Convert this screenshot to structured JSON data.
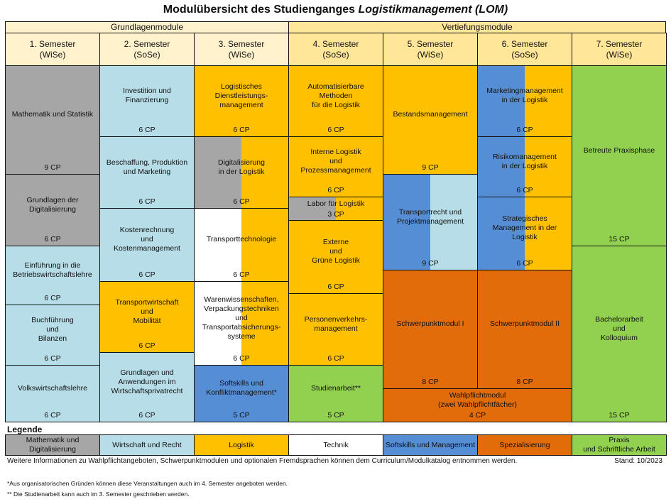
{
  "title": {
    "prefix": "Modulübersicht des Studienganges ",
    "program": "Logistikmanagement (LOM)"
  },
  "groups": [
    {
      "label": "Grundlagenmodule"
    },
    {
      "label": "Vertiefungsmodule"
    }
  ],
  "semesters": [
    {
      "label": "1. Semester",
      "term": "(WiSe)"
    },
    {
      "label": "2. Semester",
      "term": "(SoSe)"
    },
    {
      "label": "3. Semester",
      "term": "(WiSe)"
    },
    {
      "label": "4. Semester",
      "term": "(SoSe)"
    },
    {
      "label": "5. Semester",
      "term": "(WiSe)"
    },
    {
      "label": "6. Semester",
      "term": "(SoSe)"
    },
    {
      "label": "7. Semester",
      "term": "(WiSe)"
    }
  ],
  "colors": {
    "mathe": "#a6a6a6",
    "wirtschaft": "#b7dde8",
    "logistik": "#ffc000",
    "technik": "#ffffff",
    "softskills": "#558ed5",
    "spezialisierung": "#e26b0a",
    "praxis": "#92d050"
  },
  "modules": [
    {
      "name": "Mathematik und Statistik",
      "cp": "9 CP",
      "cat": [
        "mathe"
      ]
    },
    {
      "name": "Grundlagen der\nDigitalisierung",
      "cp": "6 CP",
      "cat": [
        "mathe"
      ]
    },
    {
      "name": "Einführung in die\nBetriebswirtschaftslehre",
      "cp": "6 CP",
      "cat": [
        "wirtschaft"
      ]
    },
    {
      "name": "Buchführung\nund\nBilanzen",
      "cp": "6 CP",
      "cat": [
        "wirtschaft"
      ]
    },
    {
      "name": "Volkswirtschaftslehre",
      "cp": "6 CP",
      "cat": [
        "wirtschaft"
      ]
    },
    {
      "name": "Investition und\nFinanzierung",
      "cp": "6 CP",
      "cat": [
        "wirtschaft"
      ]
    },
    {
      "name": "Beschaffung, Produktion\nund Marketing",
      "cp": "6 CP",
      "cat": [
        "wirtschaft"
      ]
    },
    {
      "name": "Kostenrechnung\nund\nKostenmanagement",
      "cp": "6 CP",
      "cat": [
        "wirtschaft"
      ]
    },
    {
      "name": "Transportwirtschaft\nund\nMobilität",
      "cp": "6 CP",
      "cat": [
        "logistik"
      ]
    },
    {
      "name": "Grundlagen und\nAnwendungen im\nWirtschaftsprivatrecht",
      "cp": "6 CP",
      "cat": [
        "wirtschaft"
      ]
    },
    {
      "name": "Logistisches\nDienstleistungs-\nmanagement",
      "cp": "6 CP",
      "cat": [
        "logistik"
      ]
    },
    {
      "name": "Digitalisierung\nin der Logistik",
      "cp": "6 CP",
      "cat": [
        "mathe",
        "logistik"
      ]
    },
    {
      "name": "Transporttechnologie",
      "cp": "6 CP",
      "cat": [
        "technik",
        "logistik"
      ]
    },
    {
      "name": "Warenwissenschaften,\nVerpackungstechniken\nund\nTransportabsicherungs-\nsysteme",
      "cp": "6 CP",
      "cat": [
        "technik",
        "logistik"
      ]
    },
    {
      "name": "Softskills und\nKonfliktmanagement*",
      "cp": "5 CP",
      "cat": [
        "softskills"
      ]
    },
    {
      "name": "Automatisierbare\nMethoden\nfür die Logistik",
      "cp": "6 CP",
      "cat": [
        "logistik"
      ]
    },
    {
      "name": "Interne Logistik\nund\nProzessmanagement",
      "cp": "6 CP",
      "cat": [
        "logistik"
      ]
    },
    {
      "name": "Labor für Logistik",
      "cp": "3 CP",
      "cat": [
        "mathe",
        "logistik"
      ]
    },
    {
      "name": "Externe\nund\nGrüne Logistik",
      "cp": "6 CP",
      "cat": [
        "logistik"
      ]
    },
    {
      "name": "Personenverkehrs-\nmanagement",
      "cp": "6 CP",
      "cat": [
        "logistik"
      ]
    },
    {
      "name": "Studienarbeit**",
      "cp": "5 CP",
      "cat": [
        "praxis"
      ]
    },
    {
      "name": "Bestandsmanagement",
      "cp": "9 CP",
      "cat": [
        "logistik"
      ]
    },
    {
      "name": "Transportrecht und\nProjektmanagement",
      "cp": "9 CP",
      "cat": [
        "softskills",
        "wirtschaft"
      ]
    },
    {
      "name": "Schwerpunktmodul I",
      "cp": "8 CP",
      "cat": [
        "spezialisierung"
      ]
    },
    {
      "name": "Wahlpflichtmodul\n(zwei Wahlpflichtfächer)",
      "cp": "4 CP",
      "cat": [
        "spezialisierung"
      ]
    },
    {
      "name": "Marketingmanagement\nin der Logistik",
      "cp": "6 CP",
      "cat": [
        "softskills",
        "logistik"
      ]
    },
    {
      "name": "Risikomanagement\nin der Logistik",
      "cp": "6 CP",
      "cat": [
        "softskills",
        "logistik"
      ]
    },
    {
      "name": "Strategisches\nManagement in der\nLogistik",
      "cp": "6 CP",
      "cat": [
        "softskills",
        "logistik"
      ]
    },
    {
      "name": "Schwerpunktmodul II",
      "cp": "8 CP",
      "cat": [
        "spezialisierung"
      ]
    },
    {
      "name": "Betreute Praxisphase",
      "cp": "15 CP",
      "cat": [
        "praxis"
      ]
    },
    {
      "name": "Bachelorarbeit\nund\nKolloquium",
      "cp": "15 CP",
      "cat": [
        "praxis"
      ]
    }
  ],
  "legend": {
    "title": "Legende",
    "items": [
      {
        "label": "Mathematik und\nDigitalisierung",
        "cat": "mathe"
      },
      {
        "label": "Wirtschaft und Recht",
        "cat": "wirtschaft"
      },
      {
        "label": "Logistik",
        "cat": "logistik"
      },
      {
        "label": "Technik",
        "cat": "technik"
      },
      {
        "label": "Softskills und Management",
        "cat": "softskills"
      },
      {
        "label": "Spezialisierung",
        "cat": "spezialisierung"
      },
      {
        "label": "Praxis\nund Schriftliche Arbeit",
        "cat": "praxis"
      }
    ]
  },
  "footer": {
    "info": "Weitere Informationen zu Wahlpflichtangeboten, Schwerpunktmodulen und optionalen Fremdsprachen können dem Curriculum/Modulkatalog entnommen werden.",
    "stand": "Stand: 10/2023",
    "note1": "*Aus organisatorischen Gründen können diese Veranstaltungen auch im 4. Semester angeboten werden.",
    "note2": "** Die Studienarbeit kann auch im 3. Semester geschrieben werden."
  }
}
